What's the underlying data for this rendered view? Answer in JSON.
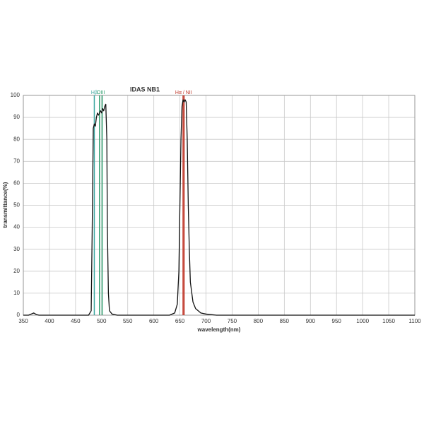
{
  "chart_data": {
    "type": "line",
    "title": "IDAS  NB1",
    "x_label": "wavelength(nm)",
    "y_label": "transmittance(%)",
    "x": [
      350,
      360,
      365,
      370,
      375,
      380,
      400,
      450,
      475,
      480,
      482,
      484,
      486,
      488,
      490,
      492,
      494,
      496,
      498,
      500,
      502,
      504,
      506,
      508,
      510,
      511,
      513,
      515,
      520,
      530,
      550,
      600,
      630,
      640,
      645,
      648,
      650,
      652,
      654,
      656,
      658,
      660,
      662,
      664,
      666,
      668,
      670,
      675,
      680,
      690,
      700,
      720,
      850,
      1100
    ],
    "values": [
      0,
      0,
      0.5,
      1,
      0.3,
      0,
      0,
      0,
      0,
      2,
      40,
      85,
      87,
      86,
      90,
      92,
      91,
      92,
      93,
      92,
      94,
      93,
      95,
      96,
      80,
      40,
      10,
      2,
      0.5,
      0,
      0,
      0,
      0,
      1,
      5,
      20,
      50,
      80,
      95,
      98,
      97,
      98,
      97,
      80,
      50,
      30,
      15,
      6,
      3,
      1,
      0.5,
      0,
      0,
      0
    ],
    "color": "#111111",
    "annotations": [
      {
        "label": "Hβ",
        "color": "#3aa6a0",
        "x": [
          486
        ]
      },
      {
        "label": "OIII",
        "color": "#2e9e6e",
        "x": [
          496,
          501
        ]
      },
      {
        "label": "Hα / NII",
        "color": "#c0392b",
        "x": [
          656,
          658
        ]
      }
    ],
    "xlim": [
      350,
      1100
    ],
    "xticks": [
      350,
      400,
      450,
      500,
      550,
      600,
      650,
      700,
      750,
      800,
      850,
      900,
      950,
      1000,
      1050,
      1100
    ],
    "ylim": [
      0,
      100
    ],
    "yticks": [
      0,
      10,
      20,
      30,
      40,
      50,
      60,
      70,
      80,
      90,
      100
    ],
    "grid": true
  }
}
